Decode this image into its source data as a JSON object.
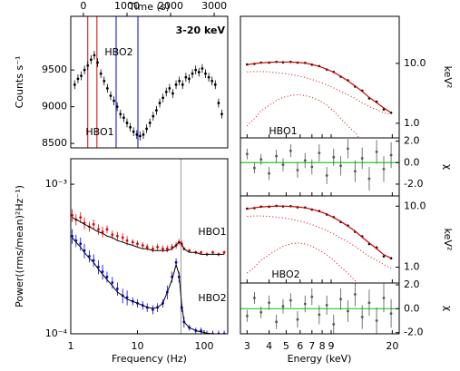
{
  "chart_data": [
    {
      "type": "scatter",
      "xlabel": "Time (s)",
      "ylabel": "Counts s⁻¹",
      "color": "#000000",
      "xlim": [
        -290,
        3310
      ],
      "xticks": [
        0,
        1000,
        2000,
        3000
      ],
      "ylim": [
        8440,
        10230
      ],
      "yticks": [
        8500,
        9000,
        9500
      ],
      "x": [
        -200,
        -125,
        -50,
        25,
        100,
        175,
        250,
        325,
        400,
        475,
        550,
        625,
        700,
        775,
        850,
        925,
        1000,
        1075,
        1150,
        1225,
        1300,
        1375,
        1450,
        1525,
        1600,
        1675,
        1750,
        1825,
        1900,
        1975,
        2050,
        2125,
        2200,
        2275,
        2350,
        2425,
        2500,
        2575,
        2650,
        2725,
        2800,
        2875,
        2950,
        3025,
        3100,
        3175
      ],
      "values": [
        9300,
        9380,
        9420,
        9500,
        9560,
        9640,
        9700,
        9600,
        9450,
        9350,
        9250,
        9150,
        9080,
        9000,
        8900,
        8850,
        8780,
        8720,
        8660,
        8620,
        8600,
        8620,
        8700,
        8780,
        8870,
        8950,
        9050,
        9120,
        9200,
        9250,
        9180,
        9300,
        9350,
        9300,
        9400,
        9380,
        9450,
        9500,
        9470,
        9520,
        9450,
        9400,
        9350,
        9300,
        9050,
        8900
      ],
      "errors": [
        60,
        60,
        60,
        60,
        60,
        60,
        60,
        60,
        60,
        60,
        60,
        60,
        60,
        60,
        60,
        60,
        60,
        60,
        60,
        60,
        60,
        60,
        60,
        60,
        60,
        60,
        60,
        60,
        60,
        60,
        60,
        60,
        60,
        60,
        60,
        60,
        60,
        60,
        60,
        60,
        60,
        60,
        60,
        60,
        60,
        60
      ],
      "vlines": [
        {
          "x": 100,
          "color": "#e00000"
        },
        {
          "x": 310,
          "color": "#e00000"
        },
        {
          "x": 750,
          "color": "#0000e0"
        },
        {
          "x": 1250,
          "color": "#0000e0"
        }
      ],
      "annotations": [
        {
          "text": "HBO1",
          "color": "#e00000"
        },
        {
          "text": "HBO2",
          "color": "#0000e0"
        },
        {
          "text": "3-20 keV",
          "color": "#000000"
        }
      ]
    },
    {
      "type": "scatter",
      "xlabel": "Frequency (Hz)",
      "ylabel": "Power((rms/mean)²Hz⁻¹)",
      "xscale": "log",
      "yscale": "log",
      "xlim": [
        1,
        226
      ],
      "xticks": [
        1,
        10,
        100
      ],
      "ylim": [
        0.0001,
        0.00148
      ],
      "yticks": [
        {
          "value": 0.001,
          "label": "10⁻³"
        },
        {
          "value": 0.0001,
          "label": "10⁻⁴"
        }
      ],
      "vline": 45,
      "vline_color": "#999999",
      "model_color": "#000000",
      "x": [
        1.05,
        1.2,
        1.4,
        1.6,
        1.9,
        2.2,
        2.6,
        3,
        3.5,
        4.2,
        5,
        6,
        7,
        8.5,
        10,
        12,
        14,
        17,
        20,
        24,
        28,
        33,
        38,
        42,
        46,
        50,
        60,
        75,
        90,
        110,
        135,
        165,
        200
      ],
      "series": [
        {
          "name": "HBO1",
          "color": "#e00000",
          "values": [
            0.00062,
            0.00058,
            0.0006,
            0.00055,
            0.00052,
            0.00054,
            0.0005,
            0.00048,
            0.0005,
            0.00046,
            0.00045,
            0.00044,
            0.00042,
            0.00041,
            0.0004,
            0.00039,
            0.00038,
            0.00037,
            0.00038,
            0.00037,
            0.00037,
            0.00038,
            0.00039,
            0.00041,
            0.0004,
            0.00037,
            0.00036,
            0.00035,
            0.00035,
            0.00034,
            0.00035,
            0.00034,
            0.00035
          ],
          "errors": [
            6e-05,
            5e-05,
            5e-05,
            5e-05,
            4e-05,
            4e-05,
            4e-05,
            4e-05,
            3e-05,
            3e-05,
            3e-05,
            3e-05,
            3e-05,
            2e-05,
            2e-05,
            2e-05,
            2e-05,
            2e-05,
            2e-05,
            2e-05,
            2e-05,
            2e-05,
            2e-05,
            2e-05,
            2e-05,
            1e-05,
            1e-05,
            1e-05,
            1e-05,
            1e-05,
            1e-05,
            1e-05,
            1e-05
          ],
          "model": [
            0.0006,
            0.00058,
            0.00056,
            0.00054,
            0.00052,
            0.0005,
            0.00048,
            0.00047,
            0.00045,
            0.00044,
            0.00042,
            0.00041,
            0.0004,
            0.00039,
            0.00038,
            0.00037,
            0.00037,
            0.00036,
            0.00036,
            0.00036,
            0.00036,
            0.00037,
            0.00039,
            0.00041,
            0.0004,
            0.00037,
            0.00035,
            0.00035,
            0.00034,
            0.00034,
            0.00034,
            0.00034,
            0.00034
          ]
        },
        {
          "name": "HBO2",
          "color": "#0000e0",
          "values": [
            0.00045,
            0.00042,
            0.0004,
            0.00036,
            0.00033,
            0.00031,
            0.00028,
            0.00026,
            0.00024,
            0.00022,
            0.0002,
            0.00018,
            0.000175,
            0.000165,
            0.00016,
            0.000155,
            0.00015,
            0.000145,
            0.00015,
            0.00016,
            0.00019,
            0.00024,
            0.0003,
            0.00024,
            0.00015,
            0.00012,
            0.00011,
            0.000105,
            0.000105,
            0.0001,
            0.0001,
            0.0001,
            0.0001
          ],
          "errors": [
            5e-05,
            4e-05,
            4e-05,
            4e-05,
            3e-05,
            3e-05,
            3e-05,
            3e-05,
            2e-05,
            2e-05,
            2e-05,
            2e-05,
            2e-05,
            1e-05,
            1e-05,
            1e-05,
            1e-05,
            1e-05,
            1e-05,
            1e-05,
            2e-05,
            2e-05,
            2e-05,
            2e-05,
            1e-05,
            1e-05,
            5e-06,
            5e-06,
            5e-06,
            5e-06,
            5e-06,
            5e-06,
            5e-06
          ],
          "model": [
            0.00044,
            0.00041,
            0.00038,
            0.00035,
            0.00032,
            0.0003,
            0.00027,
            0.00025,
            0.00023,
            0.00021,
            0.00019,
            0.00018,
            0.00017,
            0.000165,
            0.00016,
            0.000155,
            0.00015,
            0.000148,
            0.00015,
            0.00016,
            0.00019,
            0.00023,
            0.00029,
            0.00025,
            0.00016,
            0.00012,
            0.00011,
            0.000105,
            0.000103,
            0.000101,
            0.0001,
            0.0001,
            0.0001
          ]
        }
      ]
    },
    {
      "type": "line",
      "ylabel": "keV²",
      "xscale": "log",
      "yscale": "log",
      "xlim": [
        2.75,
        21.9
      ],
      "ylim": [
        0.57,
        61
      ],
      "yticks": [
        {
          "value": 1,
          "label": "1.0"
        },
        {
          "value": 10,
          "label": "10.0"
        }
      ],
      "color": "#000000",
      "model_color": "#cc0000",
      "annotations": [
        {
          "text": "HBO1",
          "color": "#e00000"
        }
      ],
      "x": [
        3,
        3.3,
        3.6,
        4,
        4.4,
        4.8,
        5.3,
        5.8,
        6.4,
        7,
        7.7,
        8.5,
        9.3,
        10.2,
        11.2,
        12.3,
        13.5,
        14.8,
        16.3,
        17.9,
        19.7
      ],
      "values": [
        9.6,
        9.8,
        10.3,
        10.3,
        10.6,
        10.4,
        10.6,
        10.3,
        10.2,
        9.5,
        9.0,
        7.9,
        7.2,
        6.0,
        5.2,
        4.1,
        3.5,
        2.6,
        2.3,
        1.7,
        1.5
      ],
      "model": [
        9.5,
        9.9,
        10.2,
        10.4,
        10.5,
        10.5,
        10.5,
        10.4,
        10.1,
        9.6,
        8.9,
        8.0,
        7.1,
        6.1,
        5.1,
        4.2,
        3.4,
        2.7,
        2.2,
        1.8,
        1.5
      ],
      "components": [
        [
          7.2,
          7.3,
          7.3,
          7.2,
          7.0,
          6.8,
          6.5,
          6.2,
          5.8,
          5.4,
          4.9,
          4.4,
          3.9,
          3.4,
          3.0,
          2.6,
          2.2,
          1.9,
          1.7,
          1.5,
          1.4
        ],
        [
          0.9,
          1.2,
          1.6,
          2.0,
          2.4,
          2.7,
          2.9,
          3.0,
          2.9,
          2.7,
          2.4,
          2.0,
          1.6,
          1.2,
          0.9,
          0.7,
          0.5,
          0.38,
          0.28,
          0.2,
          0.15
        ]
      ]
    },
    {
      "type": "scatter",
      "ylabel": "χ",
      "xscale": "log",
      "xlim": [
        2.75,
        21.9
      ],
      "ylim": [
        -3.1,
        2.3
      ],
      "yticks": [
        {
          "value": 2,
          "label": "2.0"
        },
        {
          "value": 0,
          "label": "0.0"
        },
        {
          "value": -2,
          "label": "-2.0"
        }
      ],
      "color": "#555555",
      "reference_line": 0,
      "reference_color": "#22cc22",
      "x": [
        3,
        3.3,
        3.6,
        4,
        4.4,
        4.8,
        5.3,
        5.8,
        6.4,
        7,
        7.7,
        8.5,
        9.3,
        10.2,
        11.2,
        12.3,
        13.5,
        14.8,
        16.3,
        17.9,
        19.7
      ],
      "values": [
        0.8,
        -0.5,
        0.3,
        -1.0,
        0.6,
        -0.2,
        1.1,
        -0.7,
        0.2,
        -0.4,
        0.9,
        -1.2,
        0.5,
        -0.3,
        1.3,
        -0.8,
        0.4,
        -1.5,
        1.0,
        -0.6,
        0.7
      ],
      "errors": [
        0.5,
        0.5,
        0.5,
        0.6,
        0.6,
        0.6,
        0.6,
        0.7,
        0.7,
        0.7,
        0.8,
        0.8,
        0.8,
        0.9,
        0.9,
        1.0,
        1.0,
        1.1,
        1.1,
        1.2,
        1.2
      ]
    },
    {
      "type": "line",
      "ylabel": "keV²",
      "xscale": "log",
      "yscale": "log",
      "xlim": [
        2.75,
        21.9
      ],
      "ylim": [
        0.55,
        14.7
      ],
      "yticks": [
        {
          "value": 1,
          "label": "1.0"
        },
        {
          "value": 10,
          "label": "10.0"
        }
      ],
      "color": "#000000",
      "model_color": "#cc0000",
      "annotations": [
        {
          "text": "HBO2",
          "color": "#0000e0"
        }
      ],
      "x": [
        3,
        3.3,
        3.6,
        4,
        4.4,
        4.8,
        5.3,
        5.8,
        6.4,
        7,
        7.7,
        8.5,
        9.3,
        10.2,
        11.2,
        12.3,
        13.5,
        14.8,
        16.3,
        17.9,
        19.7
      ],
      "values": [
        9.1,
        9.3,
        9.8,
        9.8,
        10.1,
        9.9,
        10.0,
        9.6,
        9.5,
        8.8,
        8.3,
        7.3,
        6.6,
        5.5,
        4.8,
        3.8,
        3.2,
        2.4,
        2.1,
        1.5,
        1.4
      ],
      "model": [
        9.0,
        9.4,
        9.7,
        9.9,
        10.0,
        10.0,
        9.9,
        9.7,
        9.4,
        8.9,
        8.2,
        7.4,
        6.5,
        5.6,
        4.7,
        3.9,
        3.1,
        2.5,
        2.0,
        1.6,
        1.4
      ],
      "components": [
        [
          6.8,
          6.9,
          6.9,
          6.8,
          6.6,
          6.4,
          6.1,
          5.8,
          5.4,
          5.0,
          4.5,
          4.0,
          3.5,
          3.0,
          2.6,
          2.2,
          1.8,
          1.5,
          1.3,
          1.1,
          0.95
        ],
        [
          0.8,
          1.0,
          1.3,
          1.6,
          1.9,
          2.2,
          2.4,
          2.5,
          2.4,
          2.2,
          1.9,
          1.6,
          1.3,
          1.0,
          0.8,
          0.6,
          0.45,
          0.35,
          0.25,
          0.2,
          0.15
        ]
      ]
    },
    {
      "type": "scatter",
      "ylabel": "χ",
      "xlabel": "Energy (keV)",
      "xscale": "log",
      "xlim": [
        2.75,
        21.9
      ],
      "xticks": [
        3,
        4,
        5,
        6,
        7,
        8,
        9,
        20
      ],
      "ylim": [
        -2.1,
        2.15
      ],
      "yticks": [
        {
          "value": 2,
          "label": "2.0"
        },
        {
          "value": 0,
          "label": "0.0"
        },
        {
          "value": -2,
          "label": "-2.0"
        }
      ],
      "color": "#555555",
      "reference_line": 0,
      "reference_color": "#22cc22",
      "x": [
        3,
        3.3,
        3.6,
        4,
        4.4,
        4.8,
        5.3,
        5.8,
        6.4,
        7,
        7.7,
        8.5,
        9.3,
        10.2,
        11.2,
        12.3,
        13.5,
        14.8,
        16.3,
        17.9,
        19.7
      ],
      "values": [
        -0.6,
        0.9,
        -0.3,
        0.5,
        -1.1,
        0.2,
        0.7,
        -0.9,
        0.4,
        1.0,
        -0.5,
        0.3,
        -1.3,
        0.8,
        -0.2,
        1.2,
        -0.7,
        0.5,
        -1.0,
        0.9,
        -0.4
      ],
      "errors": [
        0.5,
        0.5,
        0.5,
        0.6,
        0.6,
        0.6,
        0.6,
        0.7,
        0.7,
        0.7,
        0.8,
        0.8,
        0.8,
        0.9,
        0.9,
        1.0,
        1.0,
        1.1,
        1.1,
        1.2,
        1.2
      ]
    }
  ]
}
